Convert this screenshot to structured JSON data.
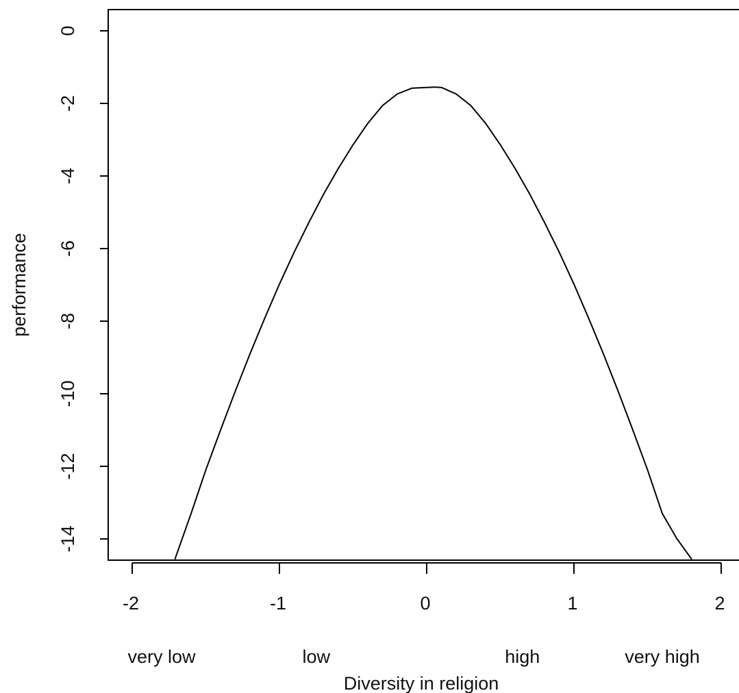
{
  "chart_data": {
    "type": "line",
    "title": "",
    "xlabel": "Diversity in religion",
    "ylabel": "performance",
    "xlim": [
      -2.16,
      2.16
    ],
    "ylim": [
      -14.6,
      0.6
    ],
    "x_ticks": [
      -2,
      -1,
      0,
      1,
      2
    ],
    "x_tick_labels": [
      "-2",
      "-1",
      "0",
      "1",
      "2"
    ],
    "y_ticks": [
      0,
      -2,
      -4,
      -6,
      -8,
      -10,
      -12,
      -14
    ],
    "y_tick_labels": [
      "0",
      "-2",
      "-4",
      "-6",
      "-8",
      "-10",
      "-12",
      "-14"
    ],
    "category_annotations": [
      {
        "text": "very low",
        "x": -1.8
      },
      {
        "text": "low",
        "x": -0.75
      },
      {
        "text": "high",
        "x": 0.65
      },
      {
        "text": "very high",
        "x": 1.6
      }
    ],
    "grid": false,
    "series": [
      {
        "x": [
          -1.71,
          -1.6,
          -1.5,
          -1.4,
          -1.3,
          -1.2,
          -1.1,
          -1.0,
          -0.9,
          -0.8,
          -0.7,
          -0.6,
          -0.5,
          -0.4,
          -0.3,
          -0.2,
          -0.1,
          0.0,
          0.05,
          0.1,
          0.2,
          0.3,
          0.4,
          0.5,
          0.6,
          0.7,
          0.8,
          0.9,
          1.0,
          1.1,
          1.2,
          1.3,
          1.4,
          1.5,
          1.6,
          1.7,
          1.8
        ],
        "y": [
          -14.56,
          -13.3,
          -12.1,
          -11.0,
          -9.93,
          -8.9,
          -7.92,
          -6.98,
          -6.1,
          -5.28,
          -4.5,
          -3.79,
          -3.14,
          -2.55,
          -2.06,
          -1.74,
          -1.58,
          -1.56,
          -1.55,
          -1.56,
          -1.74,
          -2.06,
          -2.55,
          -3.14,
          -3.79,
          -4.5,
          -5.28,
          -6.1,
          -6.98,
          -7.92,
          -8.9,
          -9.93,
          -11.0,
          -12.1,
          -13.3,
          -14.0,
          -14.56
        ]
      }
    ]
  }
}
